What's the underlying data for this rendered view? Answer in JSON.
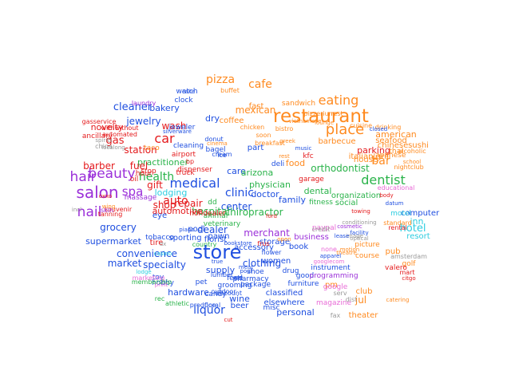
{
  "colors": {
    "red": "#e41a1c",
    "blue": "#1f4fe0",
    "purple": "#9b30d9",
    "orange": "#ff8a1f",
    "green": "#2ab34a",
    "pink": "#e86ad6",
    "cyan": "#2ecde0",
    "gray": "#999999"
  },
  "words": [
    {
      "t": "store",
      "c": "blue"
    },
    {
      "t": "restaurant",
      "c": "orange"
    },
    {
      "t": "salon",
      "c": "purple"
    },
    {
      "t": "hair",
      "c": "purple"
    },
    {
      "t": "beauty",
      "c": "purple"
    },
    {
      "t": "nail",
      "c": "purple"
    },
    {
      "t": "place",
      "c": "orange"
    },
    {
      "t": "medical",
      "c": "blue"
    },
    {
      "t": "eating",
      "c": "orange"
    },
    {
      "t": "dentist",
      "c": "green"
    },
    {
      "t": "car",
      "c": "red"
    },
    {
      "t": "spa",
      "c": "purple"
    },
    {
      "t": "auto",
      "c": "red"
    },
    {
      "t": "clinic",
      "c": "blue"
    },
    {
      "t": "health",
      "c": "green"
    },
    {
      "t": "liquor",
      "c": "blue"
    },
    {
      "t": "bar",
      "c": "orange"
    },
    {
      "t": "hotel",
      "c": "cyan"
    },
    {
      "t": "pizza",
      "c": "orange"
    },
    {
      "t": "cafe",
      "c": "orange"
    },
    {
      "t": "cleaner",
      "c": "blue"
    },
    {
      "t": "wash",
      "c": "red"
    },
    {
      "t": "mexican",
      "c": "orange"
    },
    {
      "t": "fast",
      "c": "orange"
    },
    {
      "t": "gas",
      "c": "red"
    },
    {
      "t": "station",
      "c": "red"
    },
    {
      "t": "orthodontist",
      "c": "green"
    },
    {
      "t": "care",
      "c": "blue"
    },
    {
      "t": "arizona",
      "c": "green"
    },
    {
      "t": "practitioner",
      "c": "green"
    },
    {
      "t": "physician",
      "c": "green"
    },
    {
      "t": "doctor",
      "c": "blue"
    },
    {
      "t": "barber",
      "c": "red"
    },
    {
      "t": "fuel",
      "c": "red"
    },
    {
      "t": "gift",
      "c": "red"
    },
    {
      "t": "grocery",
      "c": "blue"
    },
    {
      "t": "shop",
      "c": "red"
    },
    {
      "t": "repair",
      "c": "red"
    },
    {
      "t": "center",
      "c": "blue"
    },
    {
      "t": "hospital",
      "c": "green"
    },
    {
      "t": "chiropractor",
      "c": "green"
    },
    {
      "t": "family",
      "c": "blue"
    },
    {
      "t": "dental",
      "c": "green"
    },
    {
      "t": "supermarket",
      "c": "blue"
    },
    {
      "t": "convenience",
      "c": "blue"
    },
    {
      "t": "market",
      "c": "blue"
    },
    {
      "t": "specialty",
      "c": "blue"
    },
    {
      "t": "supply",
      "c": "blue"
    },
    {
      "t": "clothing",
      "c": "blue"
    },
    {
      "t": "hardware",
      "c": "blue"
    },
    {
      "t": "wine",
      "c": "blue"
    },
    {
      "t": "beer",
      "c": "blue"
    },
    {
      "t": "classified",
      "c": "blue"
    },
    {
      "t": "personal",
      "c": "blue"
    },
    {
      "t": "elsewhere",
      "c": "blue"
    },
    {
      "t": "dealer",
      "c": "blue"
    },
    {
      "t": "merchant",
      "c": "purple"
    },
    {
      "t": "bakery",
      "c": "blue"
    },
    {
      "t": "jewelry",
      "c": "blue"
    },
    {
      "t": "dry",
      "c": "blue"
    },
    {
      "t": "coffee",
      "c": "orange"
    },
    {
      "t": "food",
      "c": "orange"
    },
    {
      "t": "parking",
      "c": "red"
    },
    {
      "t": "grill",
      "c": "orange"
    },
    {
      "t": "house",
      "c": "orange"
    },
    {
      "t": "seafood",
      "c": "orange"
    },
    {
      "t": "american",
      "c": "orange"
    },
    {
      "t": "chinese",
      "c": "orange"
    },
    {
      "t": "sushi",
      "c": "orange"
    },
    {
      "t": "thai",
      "c": "orange"
    },
    {
      "t": "japanese",
      "c": "orange"
    },
    {
      "t": "barbecue",
      "c": "orange"
    },
    {
      "t": "italian",
      "c": "orange"
    },
    {
      "t": "pub",
      "c": "orange"
    },
    {
      "t": "golf",
      "c": "orange"
    },
    {
      "t": "course",
      "c": "orange"
    },
    {
      "t": "club",
      "c": "orange"
    },
    {
      "t": "theater",
      "c": "orange"
    },
    {
      "t": "jul",
      "c": "orange"
    },
    {
      "t": "pm",
      "c": "orange"
    },
    {
      "t": "computer",
      "c": "blue"
    },
    {
      "t": "motel",
      "c": "cyan"
    },
    {
      "t": "inn",
      "c": "cyan"
    },
    {
      "t": "resort",
      "c": "cyan"
    },
    {
      "t": "lodging",
      "c": "cyan"
    },
    {
      "t": "automotive",
      "c": "red"
    },
    {
      "t": "tire",
      "c": "red"
    },
    {
      "t": "florist",
      "c": "blue"
    },
    {
      "t": "accessory",
      "c": "blue"
    },
    {
      "t": "book",
      "c": "blue"
    },
    {
      "t": "women",
      "c": "blue"
    },
    {
      "t": "shoe",
      "c": "blue"
    },
    {
      "t": "drug",
      "c": "blue"
    },
    {
      "t": "pharmacy",
      "c": "blue"
    },
    {
      "t": "furniture",
      "c": "blue"
    },
    {
      "t": "good",
      "c": "blue"
    },
    {
      "t": "sporting",
      "c": "blue"
    },
    {
      "t": "tobacco",
      "c": "blue"
    },
    {
      "t": "pawn",
      "c": "blue"
    },
    {
      "t": "storage",
      "c": "blue"
    },
    {
      "t": "business",
      "c": "purple"
    },
    {
      "t": "fitness",
      "c": "green"
    },
    {
      "t": "social",
      "c": "green"
    },
    {
      "t": "organization",
      "c": "green"
    },
    {
      "t": "dd",
      "c": "green"
    },
    {
      "t": "animal",
      "c": "green"
    },
    {
      "t": "veterinary",
      "c": "green"
    },
    {
      "t": "eye",
      "c": "blue"
    },
    {
      "t": "nondealer",
      "c": "red"
    },
    {
      "t": "pool",
      "c": "blue"
    },
    {
      "t": "part",
      "c": "blue"
    },
    {
      "t": "deli",
      "c": "blue"
    },
    {
      "t": "airport",
      "c": "red"
    },
    {
      "t": "hour",
      "c": "red"
    },
    {
      "t": "truck",
      "c": "red"
    },
    {
      "t": "dispenser",
      "c": "red"
    },
    {
      "t": "oil",
      "c": "red"
    },
    {
      "t": "massage",
      "c": "purple"
    },
    {
      "t": "souvenir",
      "c": "red"
    },
    {
      "t": "tanning",
      "c": "red"
    },
    {
      "t": "skin",
      "c": "purple"
    },
    {
      "t": "novelty",
      "c": "red"
    },
    {
      "t": "ancillary",
      "c": "red"
    },
    {
      "t": "gasservice",
      "c": "red"
    },
    {
      "t": "withwithout",
      "c": "red"
    },
    {
      "t": "automated",
      "c": "red"
    },
    {
      "t": "watch",
      "c": "blue"
    },
    {
      "t": "clock",
      "c": "blue"
    },
    {
      "t": "cake",
      "c": "blue"
    },
    {
      "t": "laundry",
      "c": "purple"
    },
    {
      "t": "jeweler",
      "c": "blue"
    },
    {
      "t": "silverware",
      "c": "blue"
    },
    {
      "t": "cleaning",
      "c": "blue"
    },
    {
      "t": "donut",
      "c": "blue"
    },
    {
      "t": "bagel",
      "c": "blue"
    },
    {
      "t": "cream",
      "c": "blue"
    },
    {
      "t": "ice",
      "c": "blue"
    },
    {
      "t": "bp",
      "c": "red"
    },
    {
      "t": "stop",
      "c": "red"
    },
    {
      "t": "taco",
      "c": "orange"
    },
    {
      "t": "sandwich",
      "c": "orange"
    },
    {
      "t": "chicken",
      "c": "orange"
    },
    {
      "t": "soon",
      "c": "orange"
    },
    {
      "t": "breakfast",
      "c": "orange"
    },
    {
      "t": "bistro",
      "c": "orange"
    },
    {
      "t": "rest",
      "c": "orange"
    },
    {
      "t": "pizzerium",
      "c": "orange"
    },
    {
      "t": "buffet",
      "c": "orange"
    },
    {
      "t": "cuisine",
      "c": "orange"
    },
    {
      "t": "drinking",
      "c": "orange"
    },
    {
      "t": "alcoholic",
      "c": "orange"
    },
    {
      "t": "nightclub",
      "c": "orange"
    },
    {
      "t": "school",
      "c": "orange"
    },
    {
      "t": "garage",
      "c": "red"
    },
    {
      "t": "kfc",
      "c": "red"
    },
    {
      "t": "greek",
      "c": "orange"
    },
    {
      "t": "vietnamese",
      "c": "orange"
    },
    {
      "t": "lounge",
      "c": "orange"
    },
    {
      "t": "closed",
      "c": "blue"
    },
    {
      "t": "cinema",
      "c": "orange"
    },
    {
      "t": "catering",
      "c": "orange"
    },
    {
      "t": "music",
      "c": "blue"
    },
    {
      "t": "instrument",
      "c": "blue"
    },
    {
      "t": "programming",
      "c": "purple"
    },
    {
      "t": "googlecom",
      "c": "pink"
    },
    {
      "t": "google",
      "c": "pink"
    },
    {
      "t": "magazine",
      "c": "pink"
    },
    {
      "t": "picture",
      "c": "orange"
    },
    {
      "t": "none",
      "c": "pink"
    },
    {
      "t": "paypal",
      "c": "pink"
    },
    {
      "t": "misc",
      "c": "blue"
    },
    {
      "t": "flower",
      "c": "blue"
    },
    {
      "t": "toy",
      "c": "blue"
    },
    {
      "t": "hobby",
      "c": "blue"
    },
    {
      "t": "pet",
      "c": "blue"
    },
    {
      "t": "feed",
      "c": "blue"
    },
    {
      "t": "lumber",
      "c": "blue"
    },
    {
      "t": "package",
      "c": "blue"
    },
    {
      "t": "grooming",
      "c": "blue"
    },
    {
      "t": "candy",
      "c": "blue"
    },
    {
      "t": "discount",
      "c": "blue"
    },
    {
      "t": "outdoor",
      "c": "blue"
    },
    {
      "t": "produce",
      "c": "blue"
    },
    {
      "t": "floral",
      "c": "blue"
    },
    {
      "t": "meat",
      "c": "blue"
    },
    {
      "t": "ace",
      "c": "blue"
    },
    {
      "t": "true",
      "c": "blue"
    },
    {
      "t": "marketing",
      "c": "pink"
    },
    {
      "t": "print",
      "c": "pink"
    },
    {
      "t": "lodge",
      "c": "cyan"
    },
    {
      "t": "casino",
      "c": "cyan"
    },
    {
      "t": "rec",
      "c": "green"
    },
    {
      "t": "athletic",
      "c": "green"
    },
    {
      "t": "membership",
      "c": "green"
    },
    {
      "t": "country",
      "c": "green"
    },
    {
      "t": "educational",
      "c": "pink"
    },
    {
      "t": "datum",
      "c": "blue"
    },
    {
      "t": "standard",
      "c": "orange"
    },
    {
      "t": "rental",
      "c": "red"
    },
    {
      "t": "amsterdam",
      "c": "gray"
    },
    {
      "t": "valero",
      "c": "red"
    },
    {
      "t": "mart",
      "c": "red"
    },
    {
      "t": "citgo",
      "c": "red"
    },
    {
      "t": "credit",
      "c": "gray"
    },
    {
      "t": "serv",
      "c": "gray"
    },
    {
      "t": "dist",
      "c": "gray"
    },
    {
      "t": "fax",
      "c": "gray"
    },
    {
      "t": "incl",
      "c": "gray"
    },
    {
      "t": "localong",
      "c": "gray"
    },
    {
      "t": "china",
      "c": "gray"
    },
    {
      "t": "spirits",
      "c": "gray"
    },
    {
      "t": "conditioning",
      "c": "gray"
    },
    {
      "t": "image",
      "c": "gray"
    },
    {
      "t": "optical",
      "c": "gray"
    },
    {
      "t": "motion",
      "c": "orange"
    },
    {
      "t": "theatre",
      "c": "orange"
    },
    {
      "t": "facility",
      "c": "blue"
    },
    {
      "t": "towing",
      "c": "red"
    },
    {
      "t": "body",
      "c": "red"
    },
    {
      "t": "cut",
      "c": "red"
    },
    {
      "t": "lease",
      "c": "blue"
    },
    {
      "t": "wing",
      "c": "orange"
    },
    {
      "t": "bookstore",
      "c": "blue"
    },
    {
      "t": "apparel",
      "c": "blue"
    },
    {
      "t": "cosmetic",
      "c": "purple"
    },
    {
      "t": "frus",
      "c": "red"
    },
    {
      "t": "ford",
      "c": "red"
    },
    {
      "t": "dx",
      "c": "gray"
    },
    {
      "t": "oxxo",
      "c": "red"
    },
    {
      "t": "piano",
      "c": "blue"
    },
    {
      "t": "rest",
      "c": "orange"
    },
    {
      "t": "open",
      "c": "orange"
    },
    {
      "t": "pool",
      "c": "blue"
    }
  ]
}
